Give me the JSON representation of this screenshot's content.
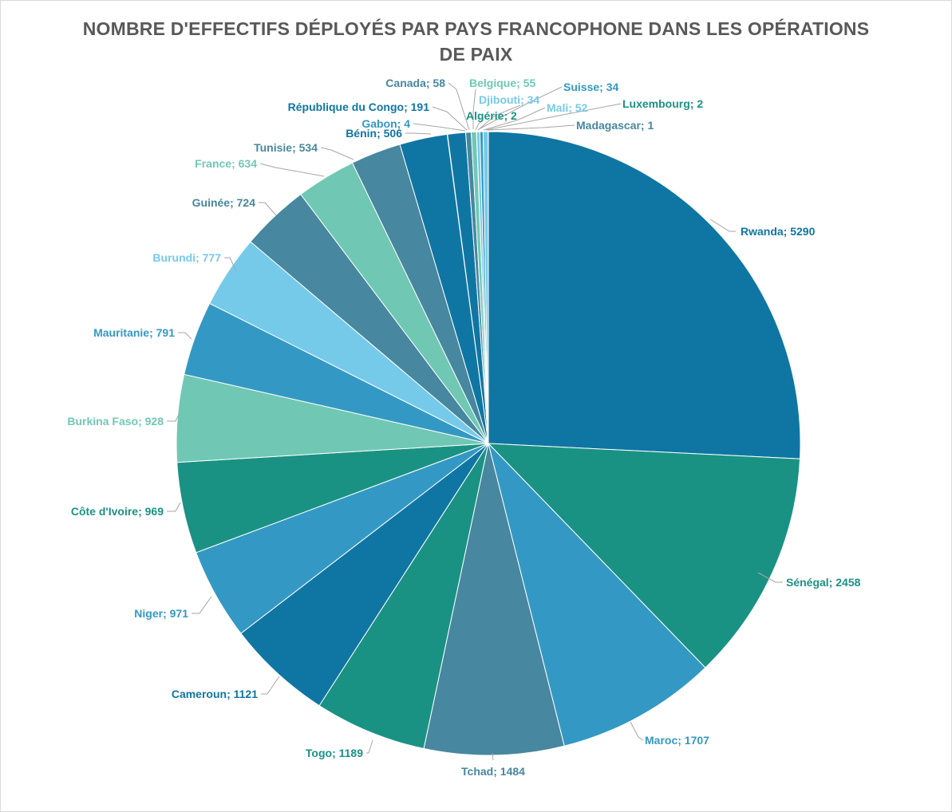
{
  "chart_data": {
    "type": "pie",
    "title_line1": "NOMBRE D'EFFECTIFS DÉPLOYÉS PAR PAYS FRANCOPHONE DANS LES OPÉRATIONS",
    "title_line2": "DE PAIX",
    "legend": "none",
    "slices": [
      {
        "label": "Rwanda; 5290",
        "name": "Rwanda",
        "value": 5290,
        "color": "#0F76A3"
      },
      {
        "label": "Sénégal; 2458",
        "name": "Sénégal",
        "value": 2458,
        "color": "#1A9283"
      },
      {
        "label": "Maroc; 1707",
        "name": "Maroc",
        "value": 1707,
        "color": "#3399C4"
      },
      {
        "label": "Tchad; 1484",
        "name": "Tchad",
        "value": 1484,
        "color": "#47879F"
      },
      {
        "label": "Togo; 1189",
        "name": "Togo",
        "value": 1189,
        "color": "#1A9283"
      },
      {
        "label": "Cameroun; 1121",
        "name": "Cameroun",
        "value": 1121,
        "color": "#0F76A3"
      },
      {
        "label": "Niger; 971",
        "name": "Niger",
        "value": 971,
        "color": "#3399C4"
      },
      {
        "label": "Côte d'Ivoire; 969",
        "name": "Côte d'Ivoire",
        "value": 969,
        "color": "#1A9283"
      },
      {
        "label": "Burkina Faso; 928",
        "name": "Burkina Faso",
        "value": 928,
        "color": "#70C8B4"
      },
      {
        "label": "Mauritanie; 791",
        "name": "Mauritanie",
        "value": 791,
        "color": "#3399C4"
      },
      {
        "label": "Burundi; 777",
        "name": "Burundi",
        "value": 777,
        "color": "#76CAE9"
      },
      {
        "label": "Guinée; 724",
        "name": "Guinée",
        "value": 724,
        "color": "#47879F"
      },
      {
        "label": "France; 634",
        "name": "France",
        "value": 634,
        "color": "#70C8B4"
      },
      {
        "label": "Tunisie; 534",
        "name": "Tunisie",
        "value": 534,
        "color": "#47879F"
      },
      {
        "label": "Bénin; 506",
        "name": "Bénin",
        "value": 506,
        "color": "#0F76A3"
      },
      {
        "label": "Gabon; 4",
        "name": "Gabon",
        "value": 4,
        "color": "#3399C4"
      },
      {
        "label": "République du Congo; 191",
        "name": "République du Congo",
        "value": 191,
        "color": "#0F76A3"
      },
      {
        "label": "Canada; 58",
        "name": "Canada",
        "value": 58,
        "color": "#47879F"
      },
      {
        "label": "Belgique; 55",
        "name": "Belgique",
        "value": 55,
        "color": "#70C8B4"
      },
      {
        "label": "Algérie; 2",
        "name": "Algérie",
        "value": 2,
        "color": "#1A9283"
      },
      {
        "label": "Djibouti; 34",
        "name": "Djibouti",
        "value": 34,
        "color": "#76CAE9"
      },
      {
        "label": "Suisse; 34",
        "name": "Suisse",
        "value": 34,
        "color": "#3399C4"
      },
      {
        "label": "Mali; 52",
        "name": "Mali",
        "value": 52,
        "color": "#76CAE9"
      },
      {
        "label": "Luxembourg; 2",
        "name": "Luxembourg",
        "value": 2,
        "color": "#1A9283"
      },
      {
        "label": "Madagascar; 1",
        "name": "Madagascar",
        "value": 1,
        "color": "#47879F"
      }
    ]
  }
}
